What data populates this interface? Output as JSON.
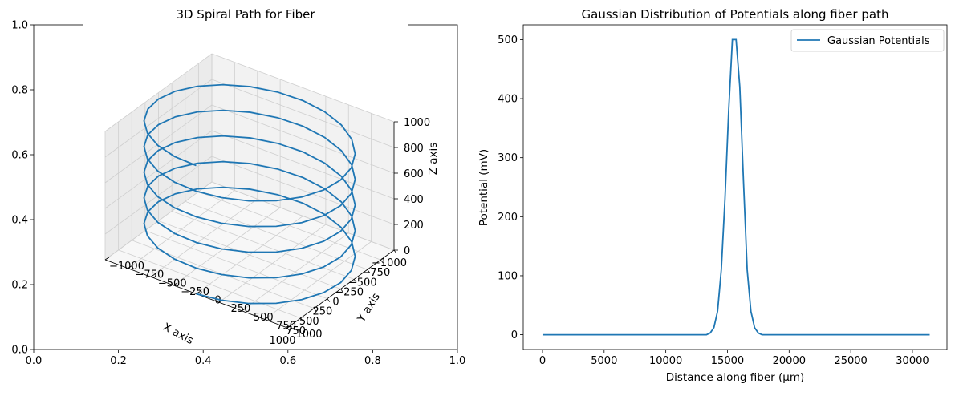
{
  "chart_data": [
    {
      "type": "line",
      "title": "3D Spiral Path for Fiber",
      "xlabel": "X axis",
      "ylabel": "Y axis",
      "zlabel": "Z axis",
      "outer_ticks": {
        "x": [
          "0.0",
          "0.2",
          "0.4",
          "0.6",
          "0.8",
          "1.0"
        ],
        "y": [
          "0.0",
          "0.2",
          "0.4",
          "0.6",
          "0.8",
          "1.0"
        ]
      },
      "xticks": [
        "−1000",
        "−750",
        "−500",
        "−250",
        "0",
        "250",
        "500",
        "750",
        "1000"
      ],
      "yticks": [
        "−1000",
        "−750",
        "−500",
        "−250",
        "0",
        "250",
        "500",
        "750",
        "1000"
      ],
      "zticks": [
        "0",
        "200",
        "400",
        "600",
        "800",
        "1000"
      ],
      "xlim": [
        -1000,
        1000
      ],
      "ylim": [
        -1000,
        1000
      ],
      "zlim": [
        0,
        1000
      ],
      "spiral": {
        "radius": 1000,
        "turns": 5,
        "z_start": 0,
        "z_end": 1000
      },
      "color": "#1f77b4",
      "grid": true
    },
    {
      "type": "line",
      "title": "Gaussian Distribution of Potentials along fiber path",
      "xlabel": "Distance along fiber (µm)",
      "ylabel": "Potential (mV)",
      "xticks": [
        "0",
        "5000",
        "10000",
        "15000",
        "20000",
        "25000",
        "30000"
      ],
      "yticks": [
        "0",
        "100",
        "200",
        "300",
        "400",
        "500"
      ],
      "xlim": [
        -1560,
        32800
      ],
      "ylim": [
        -25,
        525
      ],
      "legend": {
        "label": "Gaussian Potentials",
        "position": "upper right"
      },
      "color": "#1f77b4",
      "series": [
        {
          "name": "Gaussian Potentials",
          "x": [
            0,
            13300,
            13600,
            13900,
            14200,
            14500,
            14800,
            15100,
            15400,
            15700,
            16000,
            16300,
            16600,
            16900,
            17200,
            17500,
            17800,
            18100,
            31400
          ],
          "y": [
            0,
            0,
            3,
            12,
            40,
            110,
            230,
            380,
            500,
            500,
            420,
            260,
            110,
            40,
            12,
            3,
            0,
            0,
            0
          ]
        }
      ]
    }
  ]
}
